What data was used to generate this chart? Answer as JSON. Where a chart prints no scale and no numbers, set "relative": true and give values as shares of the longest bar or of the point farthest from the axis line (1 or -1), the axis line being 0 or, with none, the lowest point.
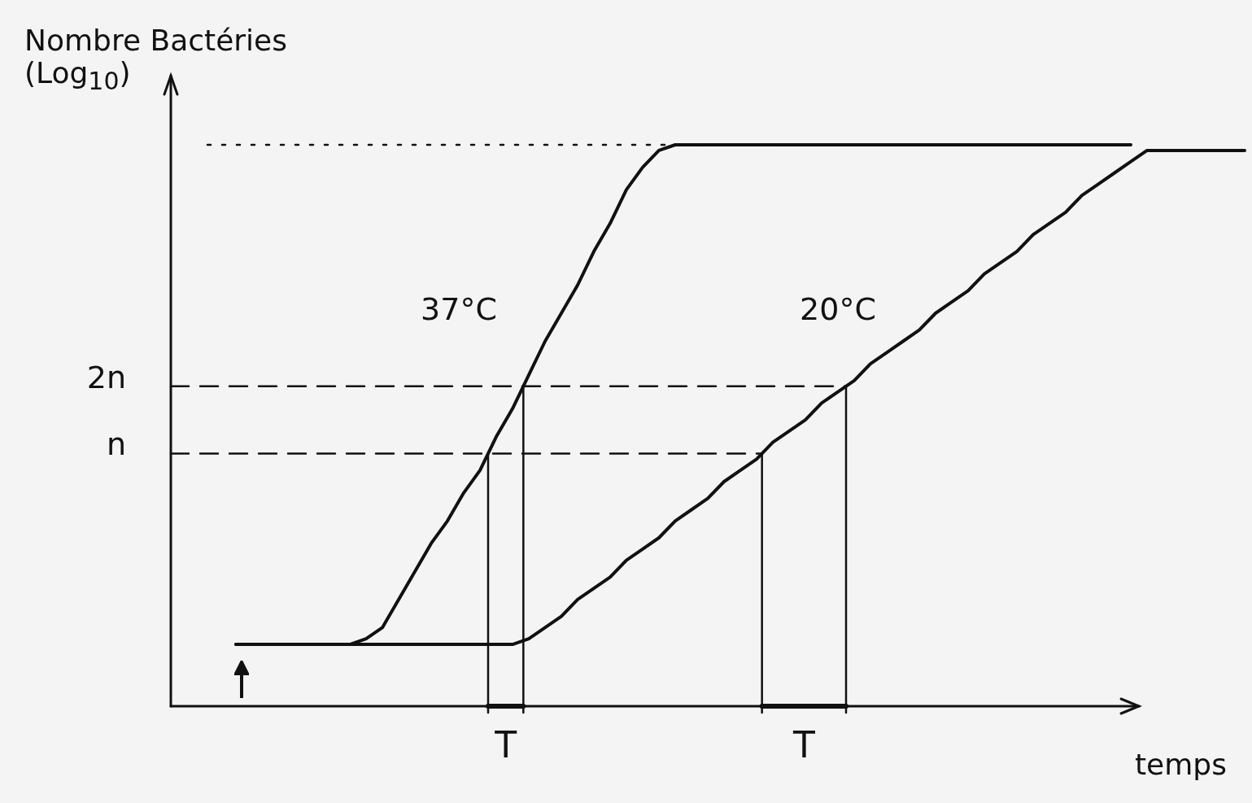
{
  "chart_data": {
    "type": "line",
    "relative": true,
    "ylabel": "Nombre Bactéries (Log$_{10}$)",
    "xlabel": "temps",
    "categories": [
      null,
      null,
      null,
      null,
      null,
      null,
      null,
      null,
      null,
      null,
      null,
      null,
      null,
      null,
      null,
      null,
      null,
      null,
      null,
      null,
      null,
      null,
      null,
      null,
      null,
      null,
      null,
      null,
      null,
      null,
      null,
      null,
      null,
      null,
      null,
      null,
      null,
      null,
      null,
      null,
      null,
      null,
      null,
      null,
      null,
      null,
      null,
      null,
      null,
      null,
      null,
      null,
      null,
      null,
      null,
      null,
      null,
      null,
      null,
      null,
      null,
      null,
      null,
      null,
      null,
      null,
      null
    ],
    "series": [
      {
        "name": "37°C",
        "color": "#111111",
        "values": [
          null,
          null,
          null,
          null,
          0.11,
          0.11,
          0.11,
          0.11,
          0.11,
          0.11,
          0.11,
          0.11,
          0.12,
          0.14,
          0.19,
          0.24,
          0.29,
          0.33,
          0.38,
          0.42,
          0.48,
          0.53,
          0.59,
          0.65,
          0.7,
          0.75,
          0.81,
          0.86,
          0.92,
          0.96,
          0.99,
          1,
          1,
          1,
          1,
          1,
          1,
          1,
          1,
          1,
          1,
          1,
          1,
          1,
          1,
          1,
          1,
          1,
          1,
          1,
          1,
          1,
          1,
          1,
          1,
          1,
          1,
          1,
          1,
          1,
          null,
          null,
          null,
          null,
          null,
          null,
          null
        ]
      },
      {
        "name": "20°C",
        "color": "#111111",
        "values": [
          null,
          null,
          null,
          null,
          0.11,
          0.11,
          0.11,
          0.11,
          0.11,
          0.11,
          0.11,
          0.11,
          0.11,
          0.11,
          0.11,
          0.11,
          0.11,
          0.11,
          0.11,
          0.11,
          0.11,
          0.11,
          0.12,
          0.14,
          0.16,
          0.19,
          0.21,
          0.23,
          0.26,
          0.28,
          0.3,
          0.33,
          0.35,
          0.37,
          0.4,
          0.42,
          0.44,
          0.47,
          0.49,
          0.51,
          0.54,
          0.56,
          0.58,
          0.61,
          0.63,
          0.65,
          0.67,
          0.7,
          0.72,
          0.74,
          0.77,
          0.79,
          0.81,
          0.84,
          0.86,
          0.88,
          0.91,
          0.93,
          0.95,
          0.97,
          0.99,
          0.99,
          0.99,
          0.99,
          0.99,
          0.99,
          0.99
        ]
      }
    ],
    "ref_lines": [
      {
        "axis": "y",
        "value": 0.45,
        "label": "n",
        "line_style": "dashed"
      },
      {
        "axis": "y",
        "value": 0.57,
        "label": "2n",
        "line_style": "dashed"
      },
      {
        "axis": "y",
        "value": 1,
        "line_style": "dotted"
      }
    ],
    "annotations": [
      "T",
      "T"
    ],
    "line_style": "solid"
  }
}
